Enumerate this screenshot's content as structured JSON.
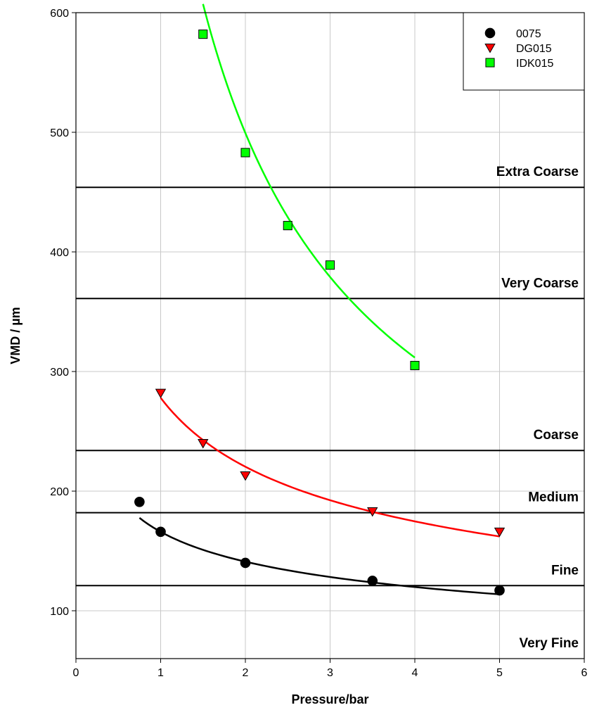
{
  "chart_data": {
    "type": "scatter",
    "title": "",
    "xlabel": "Pressure/bar",
    "ylabel": "VMD / µm",
    "xlim": [
      0,
      6
    ],
    "ylim": [
      60,
      600
    ],
    "xticks": [
      0,
      1,
      2,
      3,
      4,
      5,
      6
    ],
    "yticks": [
      100,
      200,
      300,
      400,
      500,
      600
    ],
    "grid": true,
    "legend": "top-right",
    "series": [
      {
        "name": "0075",
        "marker": "circle",
        "marker_color": "#000000",
        "fit_color": "#000000",
        "x": [
          0.75,
          1,
          2,
          3.5,
          5
        ],
        "y": [
          191,
          166,
          140,
          125,
          117
        ],
        "fit": {
          "a": 166,
          "b": -0.235,
          "x_range": [
            0.75,
            5
          ]
        }
      },
      {
        "name": "DG015",
        "marker": "triangle-down",
        "marker_color": "#ff0000",
        "fit_color": "#ff0000",
        "x": [
          1,
          1.5,
          2,
          3.5,
          5
        ],
        "y": [
          282,
          240,
          213,
          183,
          166
        ],
        "fit": {
          "a": 278,
          "b": -0.335,
          "x_range": [
            1,
            5
          ]
        }
      },
      {
        "name": "IDK015",
        "marker": "square",
        "marker_color": "#00ff00",
        "fit_color": "#00ff00",
        "x": [
          1.5,
          2,
          2.5,
          3,
          4
        ],
        "y": [
          582,
          483,
          422,
          389,
          305
        ],
        "fit": {
          "a": 800,
          "b": -0.68,
          "x_range": [
            1.5,
            4
          ]
        }
      }
    ],
    "class_lines": [
      {
        "label": "Extra Coarse",
        "y": 454
      },
      {
        "label": "Very Coarse",
        "y": 361
      },
      {
        "label": "Coarse",
        "y": 234
      },
      {
        "label": "Medium",
        "y": 182
      },
      {
        "label": "Fine",
        "y": 121
      },
      {
        "label": "Very Fine",
        "y": null
      }
    ]
  }
}
